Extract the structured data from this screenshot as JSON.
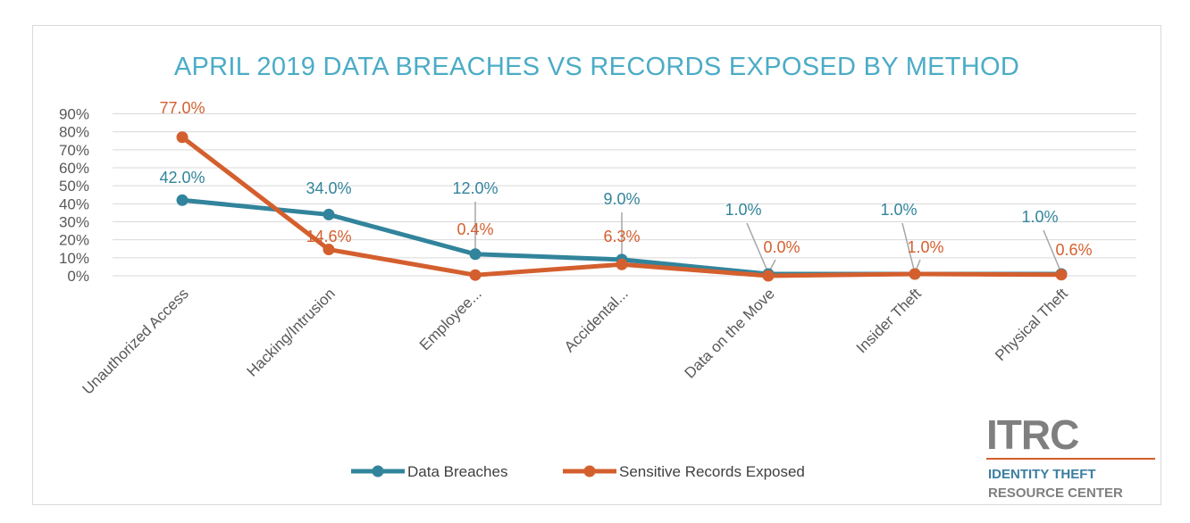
{
  "colors": {
    "title": "#4bacc6",
    "series1": "#31849b",
    "series2": "#d45f2e",
    "grid": "#d9d9d9",
    "leader": "#a6a6a6",
    "logo_blue": "#3b7ea1",
    "logo_gray": "#7f7f7f",
    "logo_orange": "#d45f2e"
  },
  "chart_data": {
    "type": "line",
    "title": "APRIL 2019 DATA BREACHES VS RECORDS EXPOSED BY METHOD",
    "categories": [
      "Unauthorized Access",
      "Hacking/Intrusion",
      "Employee...",
      "Accidental...",
      "Data on the Move",
      "Insider Theft",
      "Physical Theft"
    ],
    "series": [
      {
        "name": "Data Breaches",
        "values": [
          42.0,
          34.0,
          12.0,
          9.0,
          1.0,
          1.0,
          1.0
        ],
        "labels": [
          "42.0%",
          "34.0%",
          "12.0%",
          "9.0%",
          "1.0%",
          "1.0%",
          "1.0%"
        ]
      },
      {
        "name": "Sensitive Records Exposed",
        "values": [
          77.0,
          14.6,
          0.4,
          6.3,
          0.0,
          1.0,
          0.6
        ],
        "labels": [
          "77.0%",
          "14.6%",
          "0.4%",
          "6.3%",
          "0.0%",
          "1.0%",
          "0.6%"
        ]
      }
    ],
    "y_ticks": [
      "0%",
      "10%",
      "20%",
      "30%",
      "40%",
      "50%",
      "60%",
      "70%",
      "80%",
      "90%"
    ],
    "ylim": [
      0,
      90
    ],
    "grid": true,
    "legend": "bottom"
  },
  "logo": {
    "mark": "ITRC",
    "line1": "IDENTITY THEFT",
    "line2": "RESOURCE CENTER"
  }
}
